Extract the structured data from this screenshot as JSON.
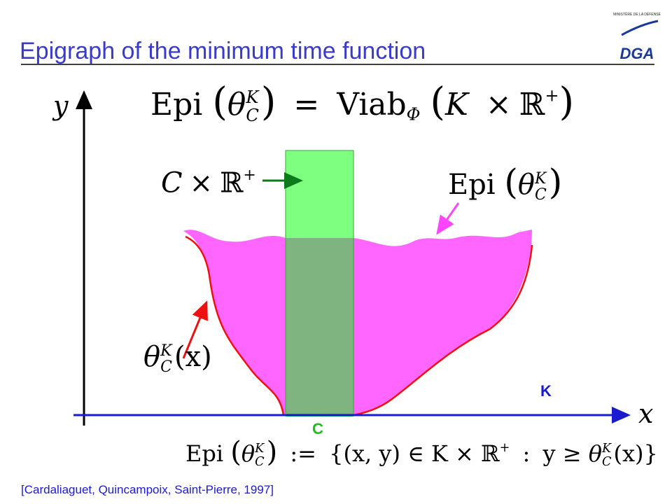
{
  "header": {
    "title": "Epigraph of the minimum time  function",
    "logo": {
      "ministry": "MINISTÈRE DE LA DÉFENSE",
      "name": "DGA"
    }
  },
  "diagram": {
    "axes": {
      "x": "x",
      "y": "y"
    },
    "formula_top": [
      "Epi",
      "(",
      "θ",
      "K",
      "C",
      ")",
      "=",
      "Viab",
      "Φ",
      "(",
      "K",
      "×",
      "ℝ",
      "+",
      ")"
    ],
    "product_label": [
      "C",
      "×",
      "ℝ",
      "+"
    ],
    "epi_label": [
      "Epi",
      "(",
      "θ",
      "K",
      "C",
      ")"
    ],
    "function_label": [
      "θ",
      "K",
      "C",
      "(x)"
    ],
    "set_k": "K",
    "set_c": "C"
  },
  "definition": [
    "Epi",
    "(",
    "θ",
    "K",
    "C",
    ")",
    ":=",
    "{(x, y) ∈ K × ℝ",
    "+",
    ":",
    "y ≥",
    "θ",
    "K",
    "C",
    "(x)}"
  ],
  "citation": "[Cardaliaguet, Quincampoix, Saint-Pierre, 1997]"
}
